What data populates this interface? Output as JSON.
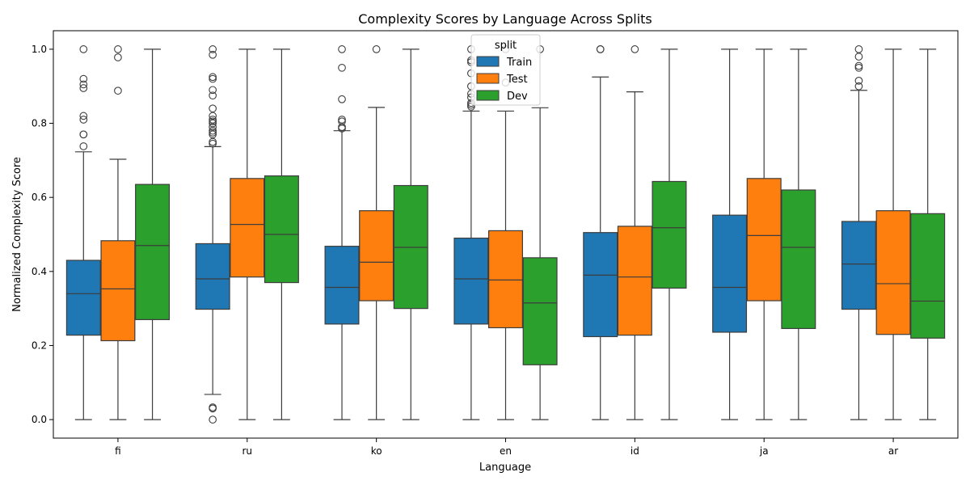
{
  "chart_data": {
    "type": "box",
    "title": "Complexity Scores by Language Across Splits",
    "xlabel": "Language",
    "ylabel": "Normalized Complexity Score",
    "ylim": [
      -0.05,
      1.05
    ],
    "yticks": [
      "0.0",
      "0.2",
      "0.4",
      "0.6",
      "0.8",
      "1.0"
    ],
    "categories": [
      "fi",
      "ru",
      "ko",
      "en",
      "id",
      "ja",
      "ar"
    ],
    "legend": {
      "title": "split",
      "position": "top-center"
    },
    "series": [
      {
        "name": "Train",
        "color": "#1f77b4",
        "boxes": [
          {
            "whislo": 0.0,
            "q1": 0.228,
            "med": 0.34,
            "q3": 0.43,
            "whishi": 0.723,
            "fliers": [
              0.738,
              0.77,
              0.77,
              0.81,
              0.82,
              0.895,
              0.905,
              0.92,
              1.0
            ]
          },
          {
            "whislo": 0.068,
            "q1": 0.298,
            "med": 0.38,
            "q3": 0.475,
            "whishi": 0.737,
            "fliers": [
              0.0,
              0.03,
              0.033,
              0.745,
              0.75,
              0.77,
              0.775,
              0.78,
              0.79,
              0.8,
              0.805,
              0.81,
              0.82,
              0.84,
              0.875,
              0.89,
              0.92,
              0.925,
              0.985,
              1.0
            ]
          },
          {
            "whislo": 0.0,
            "q1": 0.258,
            "med": 0.357,
            "q3": 0.468,
            "whishi": 0.78,
            "fliers": [
              0.786,
              0.79,
              0.805,
              0.81,
              0.865,
              0.95,
              1.0
            ]
          },
          {
            "whislo": 0.0,
            "q1": 0.258,
            "med": 0.38,
            "q3": 0.49,
            "whishi": 0.833,
            "fliers": [
              0.845,
              0.85,
              0.855,
              0.87,
              0.88,
              0.9,
              0.935,
              0.965,
              0.97,
              1.0
            ]
          },
          {
            "whislo": 0.0,
            "q1": 0.224,
            "med": 0.39,
            "q3": 0.505,
            "whishi": 0.925,
            "fliers": [
              1.0,
              1.0
            ]
          },
          {
            "whislo": 0.0,
            "q1": 0.236,
            "med": 0.357,
            "q3": 0.552,
            "whishi": 1.0,
            "fliers": []
          },
          {
            "whislo": 0.0,
            "q1": 0.298,
            "med": 0.42,
            "q3": 0.535,
            "whishi": 0.889,
            "fliers": [
              0.9,
              0.915,
              0.95,
              0.955,
              0.98,
              1.0
            ]
          }
        ]
      },
      {
        "name": "Test",
        "color": "#ff7f0e",
        "boxes": [
          {
            "whislo": 0.0,
            "q1": 0.213,
            "med": 0.353,
            "q3": 0.483,
            "whishi": 0.703,
            "fliers": [
              0.888,
              0.978,
              1.0
            ]
          },
          {
            "whislo": 0.0,
            "q1": 0.385,
            "med": 0.527,
            "q3": 0.651,
            "whishi": 1.0,
            "fliers": []
          },
          {
            "whislo": 0.0,
            "q1": 0.321,
            "med": 0.425,
            "q3": 0.564,
            "whishi": 0.843,
            "fliers": [
              1.0
            ]
          },
          {
            "whislo": 0.0,
            "q1": 0.248,
            "med": 0.377,
            "q3": 0.51,
            "whishi": 0.833,
            "fliers": [
              0.91,
              1.0
            ]
          },
          {
            "whislo": 0.0,
            "q1": 0.228,
            "med": 0.385,
            "q3": 0.522,
            "whishi": 0.885,
            "fliers": [
              1.0
            ]
          },
          {
            "whislo": 0.0,
            "q1": 0.321,
            "med": 0.497,
            "q3": 0.651,
            "whishi": 1.0,
            "fliers": []
          },
          {
            "whislo": 0.0,
            "q1": 0.23,
            "med": 0.367,
            "q3": 0.564,
            "whishi": 1.0,
            "fliers": []
          }
        ]
      },
      {
        "name": "Dev",
        "color": "#2ca02c",
        "boxes": [
          {
            "whislo": 0.0,
            "q1": 0.27,
            "med": 0.47,
            "q3": 0.635,
            "whishi": 1.0,
            "fliers": []
          },
          {
            "whislo": 0.0,
            "q1": 0.37,
            "med": 0.5,
            "q3": 0.658,
            "whishi": 1.0,
            "fliers": []
          },
          {
            "whislo": 0.0,
            "q1": 0.3,
            "med": 0.465,
            "q3": 0.632,
            "whishi": 1.0,
            "fliers": []
          },
          {
            "whislo": 0.0,
            "q1": 0.148,
            "med": 0.315,
            "q3": 0.437,
            "whishi": 0.842,
            "fliers": [
              1.0
            ]
          },
          {
            "whislo": 0.0,
            "q1": 0.355,
            "med": 0.518,
            "q3": 0.643,
            "whishi": 1.0,
            "fliers": []
          },
          {
            "whislo": 0.0,
            "q1": 0.246,
            "med": 0.465,
            "q3": 0.62,
            "whishi": 1.0,
            "fliers": []
          },
          {
            "whislo": 0.0,
            "q1": 0.22,
            "med": 0.32,
            "q3": 0.556,
            "whishi": 1.0,
            "fliers": []
          }
        ]
      }
    ]
  }
}
